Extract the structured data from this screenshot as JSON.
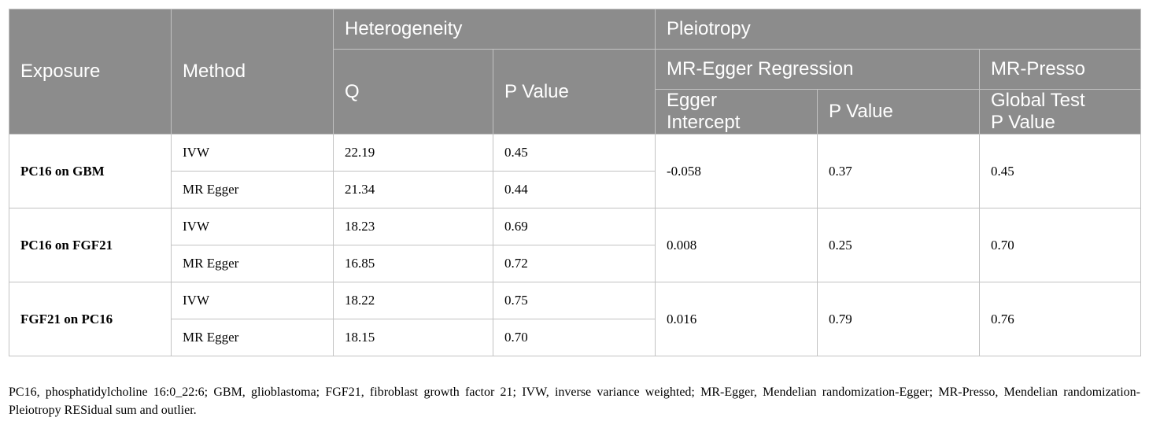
{
  "table": {
    "headers": {
      "exposure": "Exposure",
      "method": "Method",
      "heterogeneity": "Heterogeneity",
      "pleiotropy": "Pleiotropy",
      "q": "Q",
      "p_value": "P Value",
      "mr_egger_regression": "MR-Egger Regression",
      "mr_presso": "MR-Presso",
      "egger_intercept_line1": "Egger",
      "egger_intercept_line2": "Intercept",
      "egger_p_value": "P Value",
      "global_test_line1": "Global Test",
      "global_test_line2": "P Value"
    },
    "groups": [
      {
        "exposure": "PC16 on GBM",
        "rows": [
          {
            "method": "IVW",
            "q": "22.19",
            "p": "0.45"
          },
          {
            "method": "MR Egger",
            "q": "21.34",
            "p": "0.44"
          }
        ],
        "intercept": "-0.058",
        "egger_p": "0.37",
        "global_p": "0.45"
      },
      {
        "exposure": "PC16 on FGF21",
        "rows": [
          {
            "method": "IVW",
            "q": "18.23",
            "p": "0.69"
          },
          {
            "method": "MR Egger",
            "q": "16.85",
            "p": "0.72"
          }
        ],
        "intercept": "0.008",
        "egger_p": "0.25",
        "global_p": "0.70"
      },
      {
        "exposure": "FGF21 on PC16",
        "rows": [
          {
            "method": "IVW",
            "q": "18.22",
            "p": "0.75"
          },
          {
            "method": "MR Egger",
            "q": "18.15",
            "p": "0.70"
          }
        ],
        "intercept": "0.016",
        "egger_p": "0.79",
        "global_p": "0.76"
      }
    ]
  },
  "footnote": "PC16, phosphatidylcholine 16:0_22:6; GBM, glioblastoma; FGF21, fibroblast growth factor 21; IVW, inverse variance weighted; MR-Egger, Mendelian randomization-Egger; MR-Presso, Mendelian randomization-Pleiotropy RESidual sum and outlier."
}
